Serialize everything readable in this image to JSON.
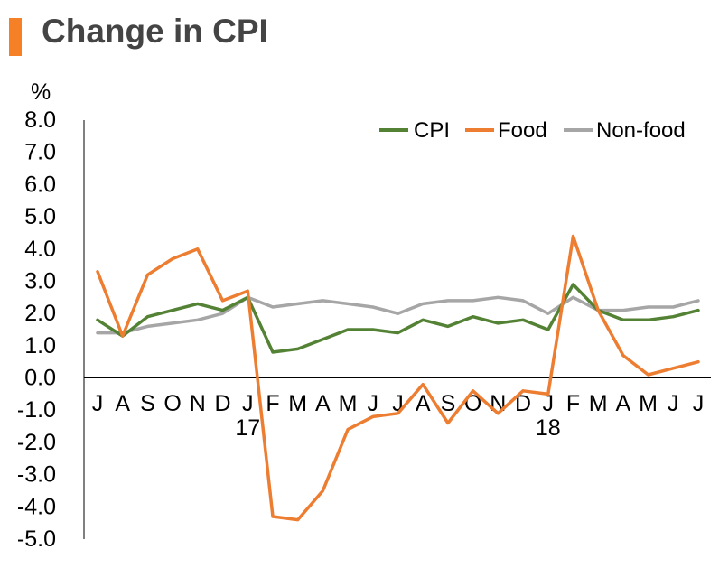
{
  "title": "Change in CPI",
  "colors": {
    "accent": "#f58025",
    "cpi": "#548235",
    "food": "#ed7d31",
    "nonfood": "#a6a6a6"
  },
  "chart_data": {
    "type": "line",
    "ylabel": "%",
    "ylim": [
      -5.0,
      8.0
    ],
    "yticks": [
      "8.0",
      "7.0",
      "6.0",
      "5.0",
      "4.0",
      "3.0",
      "2.0",
      "1.0",
      "0.0",
      "-1.0",
      "-2.0",
      "-3.0",
      "-4.0",
      "-5.0"
    ],
    "categories": [
      "J",
      "A",
      "S",
      "O",
      "N",
      "D",
      "J",
      "F",
      "M",
      "A",
      "M",
      "J",
      "J",
      "A",
      "S",
      "O",
      "N",
      "D",
      "J",
      "F",
      "M",
      "A",
      "M",
      "J",
      "J"
    ],
    "year_labels": [
      {
        "index": 6,
        "label": "17"
      },
      {
        "index": 18,
        "label": "18"
      }
    ],
    "legend_position": "top-right",
    "grid": false,
    "series": [
      {
        "name": "CPI",
        "color": "#548235",
        "values": [
          1.8,
          1.3,
          1.9,
          2.1,
          2.3,
          2.1,
          2.5,
          0.8,
          0.9,
          1.2,
          1.5,
          1.5,
          1.4,
          1.8,
          1.6,
          1.9,
          1.7,
          1.8,
          1.5,
          2.9,
          2.1,
          1.8,
          1.8,
          1.9,
          2.1
        ]
      },
      {
        "name": "Food",
        "color": "#ed7d31",
        "values": [
          3.3,
          1.3,
          3.2,
          3.7,
          4.0,
          2.4,
          2.7,
          -4.3,
          -4.4,
          -3.5,
          -1.6,
          -1.2,
          -1.1,
          -0.2,
          -1.4,
          -0.4,
          -1.1,
          -0.4,
          -0.5,
          4.4,
          2.1,
          0.7,
          0.1,
          0.3,
          0.5
        ]
      },
      {
        "name": "Non-food",
        "color": "#a6a6a6",
        "values": [
          1.4,
          1.4,
          1.6,
          1.7,
          1.8,
          2.0,
          2.5,
          2.2,
          2.3,
          2.4,
          2.3,
          2.2,
          2.0,
          2.3,
          2.4,
          2.4,
          2.5,
          2.4,
          2.0,
          2.5,
          2.1,
          2.1,
          2.2,
          2.2,
          2.4
        ]
      }
    ]
  }
}
